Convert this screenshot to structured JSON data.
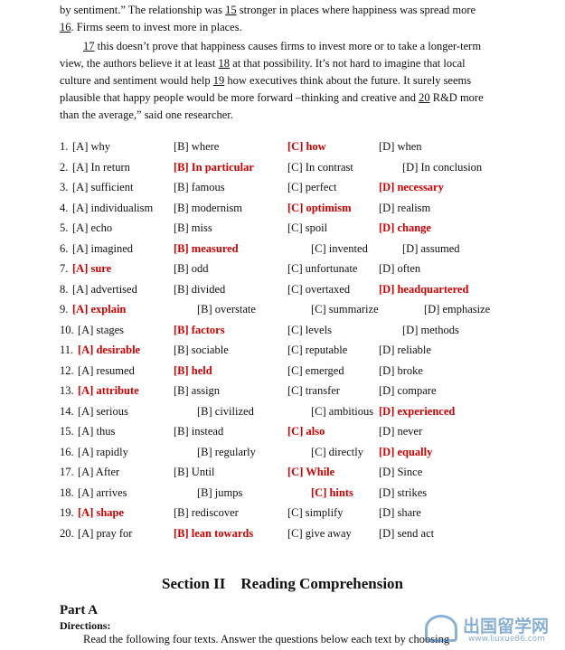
{
  "passage": {
    "paragraphs": [
      [
        "by sentiment.” The relationship was ",
        "15",
        " stronger in places where happiness was spread more ",
        "16",
        ". Firms seem to invest more in places."
      ],
      [
        "",
        "17",
        " this doesn’t prove that happiness causes firms to invest more or to take a longer-term view, the authors believe it at least ",
        "18",
        " at that possibility. It’s not hard to imagine that local culture and sentiment would help ",
        "19",
        " how executives think about the future. It surely seems plausible that happy people would be more forward –thinking and creative and ",
        "20",
        " R&D more than the average,” said one researcher."
      ]
    ]
  },
  "questions": [
    {
      "number": "1.",
      "options": [
        "[A] why",
        "[B] where",
        "[C] how",
        "[D] when"
      ],
      "answer": 2
    },
    {
      "number": "2.",
      "options": [
        "[A] In return",
        "[B] In particular",
        "[C] In contrast",
        "[D] In conclusion"
      ],
      "answer": 1
    },
    {
      "number": "3.",
      "options": [
        "[A] sufficient",
        "[B] famous",
        "[C] perfect",
        "[D] necessary"
      ],
      "answer": 3
    },
    {
      "number": "4.",
      "options": [
        "[A] individualism",
        "[B] modernism",
        "[C] optimism",
        "[D] realism"
      ],
      "answer": 2
    },
    {
      "number": "5.",
      "options": [
        "[A] echo",
        "[B] miss",
        "[C] spoil",
        "[D] change"
      ],
      "answer": 3
    },
    {
      "number": "6.",
      "options": [
        "[A] imagined",
        "[B] measured",
        "[C] invented",
        "[D] assumed"
      ],
      "answer": 1
    },
    {
      "number": "7.",
      "options": [
        "[A] sure",
        "[B] odd",
        "[C] unfortunate",
        "[D] often"
      ],
      "answer": 0
    },
    {
      "number": "8.",
      "options": [
        "[A] advertised",
        "[B] divided",
        "[C] overtaxed",
        "[D] headquartered"
      ],
      "answer": 3
    },
    {
      "number": "9.",
      "options": [
        "[A] explain",
        "[B] overstate",
        "[C] summarize",
        "[D] emphasize"
      ],
      "answer": 0
    },
    {
      "number": "10.",
      "options": [
        "[A] stages",
        "[B] factors",
        "[C] levels",
        "[D] methods"
      ],
      "answer": 1
    },
    {
      "number": "11.",
      "options": [
        "[A] desirable",
        "[B] sociable",
        "[C] reputable",
        "[D] reliable"
      ],
      "answer": 0
    },
    {
      "number": "12.",
      "options": [
        "[A] resumed",
        "[B] held",
        "[C] emerged",
        "[D] broke"
      ],
      "answer": 1
    },
    {
      "number": "13.",
      "options": [
        "[A] attribute",
        "[B] assign",
        "[C] transfer",
        "[D] compare"
      ],
      "answer": 0
    },
    {
      "number": "14.",
      "options": [
        "[A] serious",
        "[B] civilized",
        "[C] ambitious",
        "[D] experienced"
      ],
      "answer": 3
    },
    {
      "number": "15.",
      "options": [
        "[A] thus",
        "[B] instead",
        "[C] also",
        "[D] never"
      ],
      "answer": 2
    },
    {
      "number": "16.",
      "options": [
        "[A] rapidly",
        "[B] regularly",
        "[C] directly",
        "[D] equally"
      ],
      "answer": 3
    },
    {
      "number": "17.",
      "options": [
        "[A] After",
        "[B] Until",
        "[C] While",
        "[D] Since"
      ],
      "answer": 2
    },
    {
      "number": "18.",
      "options": [
        "[A] arrives",
        "[B] jumps",
        "[C] hints",
        "[D] strikes"
      ],
      "answer": 2
    },
    {
      "number": "19.",
      "options": [
        "[A] shape",
        "[B] rediscover",
        "[C] simplify",
        "[D] share"
      ],
      "answer": 0
    },
    {
      "number": "20.",
      "options": [
        "[A] pray for",
        "[B] lean towards",
        "[C] give away",
        "[D] send act"
      ],
      "answer": 1
    }
  ],
  "section": {
    "title": "Section II    Reading Comprehension",
    "part": "Part A",
    "directions_label": "Directions:",
    "directions": "Read the following four texts. Answer the questions below each text by choosing"
  },
  "watermark": {
    "name": "出国留学网",
    "url": "www.liuxue86.com"
  }
}
